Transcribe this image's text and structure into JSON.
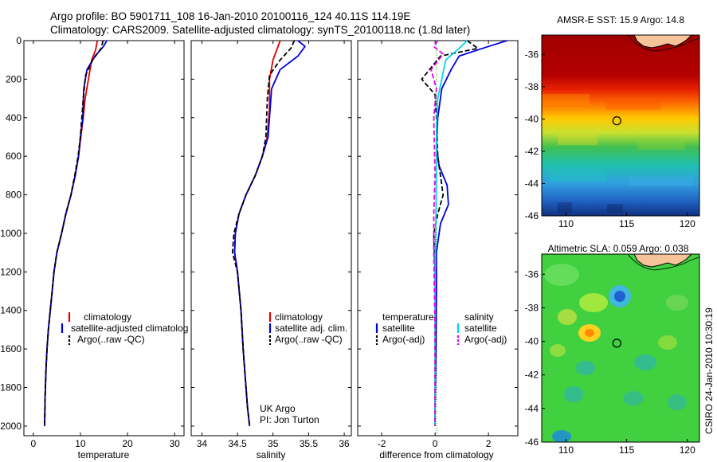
{
  "header": {
    "line1": "Argo profile: BO 5901711_108 16-Jan-2010 20100116_124 40.11S 114.19E",
    "line2": "Climatology: CARS2009. Satellite-adjusted climatology: synTS_20100118.nc (1.8d later)"
  },
  "footer": {
    "credit": "CSIRO 24-Jan-2010 10:30:19"
  },
  "colors": {
    "climatology": "#e00000",
    "satellite": "#0000dd",
    "argo": "#000000",
    "sat_salinity": "#00d8e8",
    "argo_salinity": "#e000e0",
    "land": "#f7c49a"
  },
  "chart_data": [
    {
      "type": "line",
      "xlabel": "temperature",
      "ylabel": "",
      "xlim": [
        -2,
        32
      ],
      "ylim": [
        2050,
        0
      ],
      "xticks": [
        "0",
        "10",
        "20",
        "30"
      ],
      "xtick_values": [
        0,
        10,
        20,
        30
      ],
      "yticks": [
        "0",
        "200",
        "400",
        "600",
        "800",
        "1000",
        "1200",
        "1400",
        "1600",
        "1800",
        "2000"
      ],
      "ytick_values": [
        0,
        200,
        400,
        600,
        800,
        1000,
        1200,
        1400,
        1600,
        1800,
        2000
      ],
      "legend": [
        "climatology",
        "satellite-adjusted climatolog",
        "Argo(..raw -QC)"
      ],
      "legend_position": "lower-right",
      "series": [
        {
          "name": "climatology",
          "color": "#e00000",
          "dash": "",
          "x": [
            13.6,
            13.2,
            12.4,
            11.7,
            11.0,
            10.6,
            10.1,
            9.6,
            8.9,
            8.0,
            6.9,
            6.0,
            5.0,
            4.4,
            4.0,
            3.6,
            3.2,
            2.9,
            2.7,
            2.5,
            2.4
          ],
          "y": [
            0,
            50,
            100,
            200,
            300,
            400,
            500,
            600,
            700,
            800,
            900,
            1000,
            1100,
            1200,
            1300,
            1400,
            1500,
            1600,
            1700,
            1850,
            2000
          ]
        },
        {
          "name": "satellite-adjusted climatolog",
          "color": "#0000dd",
          "dash": "",
          "x": [
            15.6,
            14.9,
            13.1,
            11.4,
            10.7,
            10.5,
            10.0,
            9.6,
            8.9,
            8.0,
            6.9,
            6.0,
            5.0,
            4.4,
            4.0,
            3.6,
            3.2,
            2.9,
            2.7,
            2.5,
            2.4
          ],
          "y": [
            0,
            30,
            80,
            150,
            250,
            400,
            500,
            600,
            700,
            800,
            900,
            1000,
            1100,
            1200,
            1300,
            1400,
            1500,
            1600,
            1700,
            1850,
            2000
          ]
        },
        {
          "name": "Argo(..raw -QC)",
          "color": "#000000",
          "dash": "6,3",
          "x": [
            14.8,
            14.4,
            12.6,
            11.1,
            10.6,
            10.3,
            10.0,
            9.5,
            8.8,
            8.0,
            6.9,
            6.0,
            5.0,
            4.4,
            4.0,
            3.6,
            3.2,
            2.9,
            2.7,
            2.5,
            2.4
          ],
          "y": [
            0,
            40,
            100,
            180,
            300,
            400,
            500,
            600,
            700,
            800,
            900,
            1000,
            1100,
            1200,
            1300,
            1400,
            1500,
            1600,
            1700,
            1850,
            2000
          ]
        }
      ]
    },
    {
      "type": "line",
      "xlabel": "salinity",
      "ylabel": "",
      "xlim": [
        33.85,
        36.1
      ],
      "ylim": [
        2050,
        0
      ],
      "xticks": [
        "34",
        "34.5",
        "35",
        "35.5",
        "36"
      ],
      "xtick_values": [
        34,
        34.5,
        35,
        35.5,
        36
      ],
      "legend": [
        "climatology",
        "satellite adj. clim.",
        "Argo(..raw -QC)"
      ],
      "legend_position": "lower-right",
      "annotations": [
        "UK Argo",
        "PI: Jon Turton"
      ],
      "series": [
        {
          "name": "climatology",
          "color": "#e00000",
          "dash": "",
          "x": [
            35.1,
            35.05,
            35.0,
            34.95,
            34.95,
            34.92,
            34.85,
            34.75,
            34.62,
            34.52,
            34.47,
            34.46,
            34.5,
            34.55,
            34.58,
            34.62,
            34.64,
            34.67
          ],
          "y": [
            0,
            50,
            100,
            200,
            350,
            500,
            600,
            700,
            800,
            900,
            1000,
            1100,
            1200,
            1400,
            1600,
            1800,
            1900,
            2000
          ]
        },
        {
          "name": "satellite adj. clim.",
          "color": "#0000dd",
          "dash": "",
          "x": [
            35.35,
            35.45,
            35.35,
            35.1,
            34.98,
            34.93,
            34.85,
            34.75,
            34.62,
            34.52,
            34.47,
            34.46,
            34.5,
            34.55,
            34.58,
            34.62,
            34.64,
            34.67
          ],
          "y": [
            0,
            30,
            80,
            150,
            250,
            500,
            600,
            700,
            800,
            900,
            1000,
            1100,
            1200,
            1400,
            1600,
            1800,
            1900,
            2000
          ]
        },
        {
          "name": "Argo(..raw -QC)",
          "color": "#000000",
          "dash": "6,3",
          "x": [
            35.3,
            35.25,
            35.1,
            34.95,
            34.92,
            34.9,
            34.85,
            34.75,
            34.62,
            34.52,
            34.45,
            34.43,
            34.5,
            34.55,
            34.58,
            34.62,
            34.64,
            34.67
          ],
          "y": [
            0,
            40,
            100,
            180,
            300,
            500,
            600,
            700,
            800,
            900,
            1000,
            1100,
            1200,
            1400,
            1600,
            1800,
            1900,
            2000
          ]
        }
      ]
    },
    {
      "type": "line",
      "xlabel": "difference from climatology",
      "ylabel": "",
      "xlim": [
        -2.9,
        3.1
      ],
      "ylim": [
        2050,
        0
      ],
      "xticks": [
        "-2",
        "0",
        "2"
      ],
      "xtick_values": [
        -2,
        0,
        2
      ],
      "legend_headers": [
        "temperature",
        "salinity"
      ],
      "legend": [
        "satellite",
        "Argo(-adj)",
        "satellite",
        "Argo(-adj)"
      ],
      "legend_position": "lower-right",
      "series": [
        {
          "name": "satellite",
          "group": "temperature",
          "color": "#0000dd",
          "dash": "",
          "x": [
            2.7,
            2.0,
            0.9,
            0.6,
            0.25,
            0.1,
            0.05,
            0.15,
            0.45,
            0.5,
            0.2,
            0.05,
            0.05,
            0.03,
            0.0,
            0.0
          ],
          "y": [
            0,
            30,
            80,
            150,
            250,
            400,
            550,
            650,
            750,
            850,
            950,
            1100,
            1300,
            1600,
            1900,
            2000
          ]
        },
        {
          "name": "Argo(-adj)",
          "group": "temperature",
          "color": "#000000",
          "dash": "6,3",
          "x": [
            1.2,
            1.6,
            0.2,
            -0.5,
            0.0,
            0.05,
            0.1,
            0.2,
            0.3,
            0.1,
            -0.05,
            0.0,
            0.02,
            0.0,
            0.0
          ],
          "y": [
            0,
            40,
            80,
            200,
            280,
            400,
            600,
            700,
            800,
            900,
            1000,
            1200,
            1500,
            1800,
            2000
          ]
        },
        {
          "name": "satellite",
          "group": "salinity",
          "color": "#00d8e8",
          "dash": "",
          "x": [
            1.2,
            0.9,
            0.4,
            0.25,
            0.1,
            0.05,
            0.05,
            0.03,
            0.0,
            0.0,
            0.0
          ],
          "y": [
            0,
            40,
            100,
            200,
            300,
            450,
            700,
            900,
            1200,
            1600,
            2000
          ]
        },
        {
          "name": "Argo(-adj)",
          "group": "salinity",
          "color": "#e000e0",
          "dash": "6,3",
          "x": [
            0.1,
            -0.05,
            0.3,
            -0.15,
            0.05,
            -0.05,
            0.0,
            -0.05,
            -0.05,
            0.0,
            0.0
          ],
          "y": [
            0,
            30,
            70,
            150,
            250,
            400,
            700,
            900,
            1100,
            1500,
            2000
          ]
        }
      ]
    },
    {
      "type": "heatmap",
      "title": "AMSR-E SST: 15.9 Argo: 14.8",
      "xlim": [
        108,
        121
      ],
      "ylim": [
        -46,
        -34.8
      ],
      "xticks": [
        "110",
        "115",
        "120"
      ],
      "xtick_values": [
        110,
        115,
        120
      ],
      "yticks": [
        "-36",
        "-38",
        "-40",
        "-42",
        "-44",
        "-46"
      ],
      "ytick_values": [
        -36,
        -38,
        -40,
        -42,
        -44,
        -46
      ],
      "marker": {
        "lon": 114.19,
        "lat": -40.11
      }
    },
    {
      "type": "heatmap",
      "title": "Altimetric SLA: 0.059 Argo: 0.038",
      "xlim": [
        108,
        121
      ],
      "ylim": [
        -46,
        -34.8
      ],
      "xticks": [
        "110",
        "115",
        "120"
      ],
      "xtick_values": [
        110,
        115,
        120
      ],
      "yticks": [
        "-36",
        "-38",
        "-40",
        "-42",
        "-44",
        "-46"
      ],
      "ytick_values": [
        -36,
        -38,
        -40,
        -42,
        -44,
        -46
      ],
      "marker": {
        "lon": 114.19,
        "lat": -40.11
      }
    }
  ]
}
